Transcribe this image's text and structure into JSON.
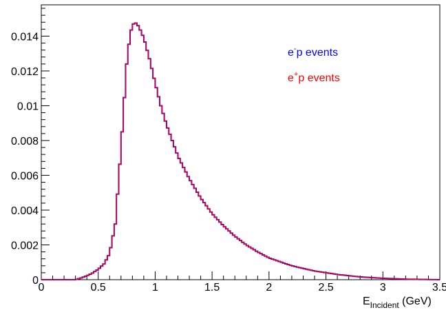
{
  "chart_data": {
    "type": "line",
    "title": "",
    "xlabel": {
      "main": "E",
      "sub": "Incident",
      "unit": " (GeV)"
    },
    "ylabel": "",
    "xlim": [
      0,
      3.5
    ],
    "ylim": [
      0,
      0.0158
    ],
    "x_ticks": [
      0,
      0.5,
      1,
      1.5,
      2,
      2.5,
      3,
      3.5
    ],
    "x_tick_labels": [
      "0",
      "0.5",
      "1",
      "1.5",
      "2",
      "2.5",
      "3",
      "3.5"
    ],
    "y_ticks": [
      0,
      0.002,
      0.004,
      0.006,
      0.008,
      0.01,
      0.012,
      0.014
    ],
    "y_tick_labels": [
      "0",
      "0.002",
      "0.004",
      "0.006",
      "0.008",
      "0.01",
      "0.012",
      "0.014"
    ],
    "grid": false,
    "legend_position": "top-right",
    "series": [
      {
        "legend_base": "e",
        "legend_sup": "-",
        "legend_rest": "p events",
        "color": "#0000ff",
        "x": [
          0,
          0.3,
          0.35,
          0.4,
          0.45,
          0.5,
          0.55,
          0.6,
          0.65,
          0.7,
          0.72,
          0.75,
          0.78,
          0.8,
          0.82,
          0.84,
          0.86,
          0.9,
          0.95,
          1.0,
          1.05,
          1.1,
          1.2,
          1.3,
          1.4,
          1.5,
          1.6,
          1.7,
          1.8,
          1.9,
          2.0,
          2.2,
          2.4,
          2.6,
          2.8,
          3.0,
          3.2,
          3.5
        ],
        "y": [
          0,
          0,
          0.0001,
          0.00022,
          0.00038,
          0.0006,
          0.0009,
          0.0015,
          0.0032,
          0.0075,
          0.0095,
          0.0124,
          0.0141,
          0.0146,
          0.0148,
          0.0147,
          0.0145,
          0.0139,
          0.0127,
          0.0113,
          0.01,
          0.0089,
          0.0071,
          0.0058,
          0.0047,
          0.0038,
          0.0031,
          0.0025,
          0.002,
          0.0016,
          0.00125,
          0.0008,
          0.0005,
          0.0003,
          0.00016,
          8e-05,
          3e-05,
          0
        ]
      },
      {
        "legend_base": "e",
        "legend_sup": "+",
        "legend_rest": "p events",
        "color": "#ff0000",
        "x": [
          0,
          0.3,
          0.35,
          0.4,
          0.45,
          0.5,
          0.55,
          0.6,
          0.65,
          0.7,
          0.72,
          0.75,
          0.78,
          0.8,
          0.82,
          0.84,
          0.86,
          0.9,
          0.95,
          1.0,
          1.05,
          1.1,
          1.2,
          1.3,
          1.4,
          1.5,
          1.6,
          1.7,
          1.8,
          1.9,
          2.0,
          2.2,
          2.4,
          2.6,
          2.8,
          3.0,
          3.2,
          3.5
        ],
        "y": [
          0,
          0,
          0.0001,
          0.00022,
          0.00038,
          0.0006,
          0.0009,
          0.0015,
          0.0032,
          0.0075,
          0.0095,
          0.0124,
          0.0141,
          0.0146,
          0.0148,
          0.0147,
          0.0145,
          0.0139,
          0.0127,
          0.0113,
          0.01,
          0.0089,
          0.0071,
          0.0058,
          0.0047,
          0.0038,
          0.0031,
          0.0025,
          0.002,
          0.0016,
          0.00125,
          0.0008,
          0.0005,
          0.0003,
          0.00016,
          8e-05,
          3e-05,
          0
        ]
      }
    ]
  }
}
